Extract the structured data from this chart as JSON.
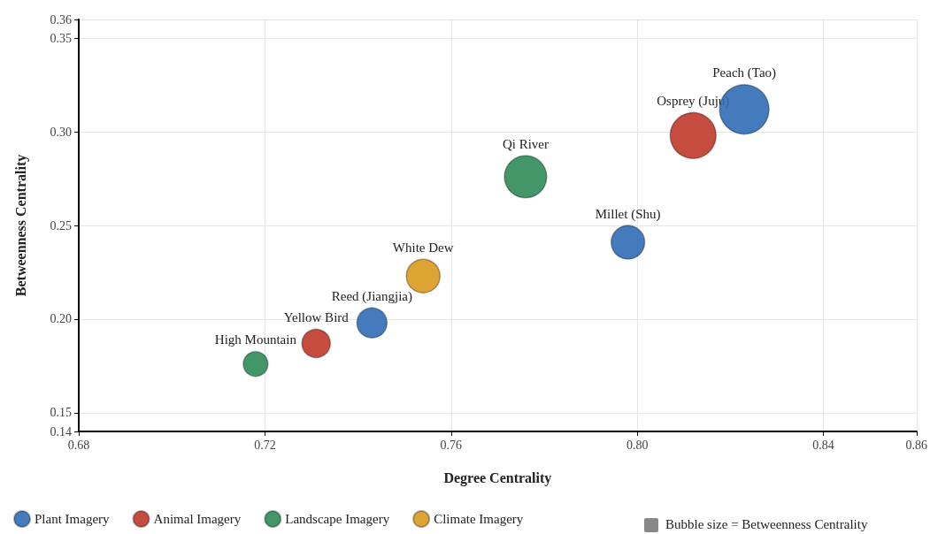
{
  "chart_data": {
    "type": "bubble",
    "xlabel": "Degree Centrality",
    "ylabel": "Betweenness Centrality",
    "xlim": [
      0.68,
      0.86
    ],
    "xticks": [
      0.68,
      0.72,
      0.76,
      {
        "value": 0.8,
        "label": "0.80"
      },
      0.84,
      0.86
    ],
    "ylim": [
      0.14,
      0.36
    ],
    "yticks": [
      0.14,
      0.15,
      {
        "value": 0.2,
        "label": "0.20"
      },
      0.25,
      {
        "value": 0.3,
        "label": "0.30"
      },
      0.35,
      0.36
    ],
    "grid": true,
    "legend": "bottom",
    "series": [
      {
        "name": "Plant Imagery",
        "color": "#2f6db5",
        "x": [
          0.823,
          0.798,
          0.743
        ],
        "values": [
          0.312,
          0.241,
          0.198
        ],
        "sizes": [
          1,
          0.46,
          0.37
        ]
      },
      {
        "name": "Animal Imagery",
        "color": "#c0392b",
        "x": [
          0.812,
          0.731
        ],
        "values": [
          0.298,
          0.187
        ],
        "sizes": [
          0.86,
          0.33
        ]
      },
      {
        "name": "Landscape Imagery",
        "color": "#2e8b57",
        "x": [
          0.776,
          0.718
        ],
        "values": [
          0.276,
          0.176
        ],
        "sizes": [
          0.73,
          0.25
        ]
      },
      {
        "name": "Climate Imagery",
        "color": "#d99a1e",
        "x": [
          0.754
        ],
        "values": [
          0.223
        ],
        "sizes": [
          0.46
        ]
      }
    ],
    "annotations": [
      {
        "text": "Peach (Tao)",
        "x": 0.823,
        "y": 0.312
      },
      {
        "text": "Millet (Shu)",
        "x": 0.798,
        "y": 0.241
      },
      {
        "text": "Reed (Jiangjia)",
        "x": 0.743,
        "y": 0.198
      },
      {
        "text": "Osprey (Juju)",
        "x": 0.812,
        "y": 0.298
      },
      {
        "text": "Yellow Bird",
        "x": 0.731,
        "y": 0.187
      },
      {
        "text": "Qi River",
        "x": 0.776,
        "y": 0.276
      },
      {
        "text": "High Mountain",
        "x": 0.718,
        "y": 0.176
      },
      {
        "text": "White Dew",
        "x": 0.754,
        "y": 0.223
      },
      "Bubble size = Betweenness Centrality"
    ]
  }
}
